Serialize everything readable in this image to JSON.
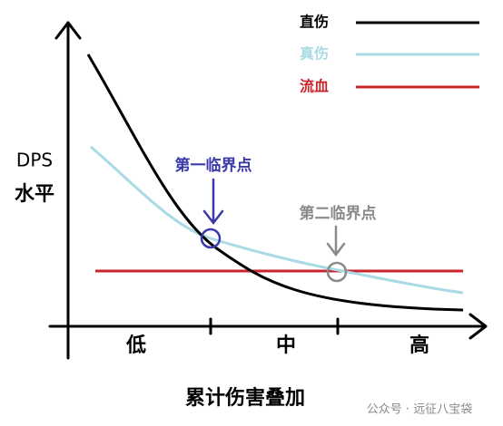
{
  "y_axis_label": [
    "DPS",
    "水平"
  ],
  "x_axis_label": "累计伤害叠加",
  "x_categories": [
    "低",
    "中",
    "高"
  ],
  "legend": [
    {
      "name": "直伤",
      "color": "#000000"
    },
    {
      "name": "真伤",
      "color": "#a8dbe3"
    },
    {
      "name": "流血",
      "color": "#c8262c"
    }
  ],
  "annotations": [
    {
      "label": "第一临界点",
      "color": "#3a3aa8"
    },
    {
      "label": "第二临界点",
      "color": "#8a8a8a"
    }
  ],
  "watermark": "公众号 · 远征八宝袋"
}
